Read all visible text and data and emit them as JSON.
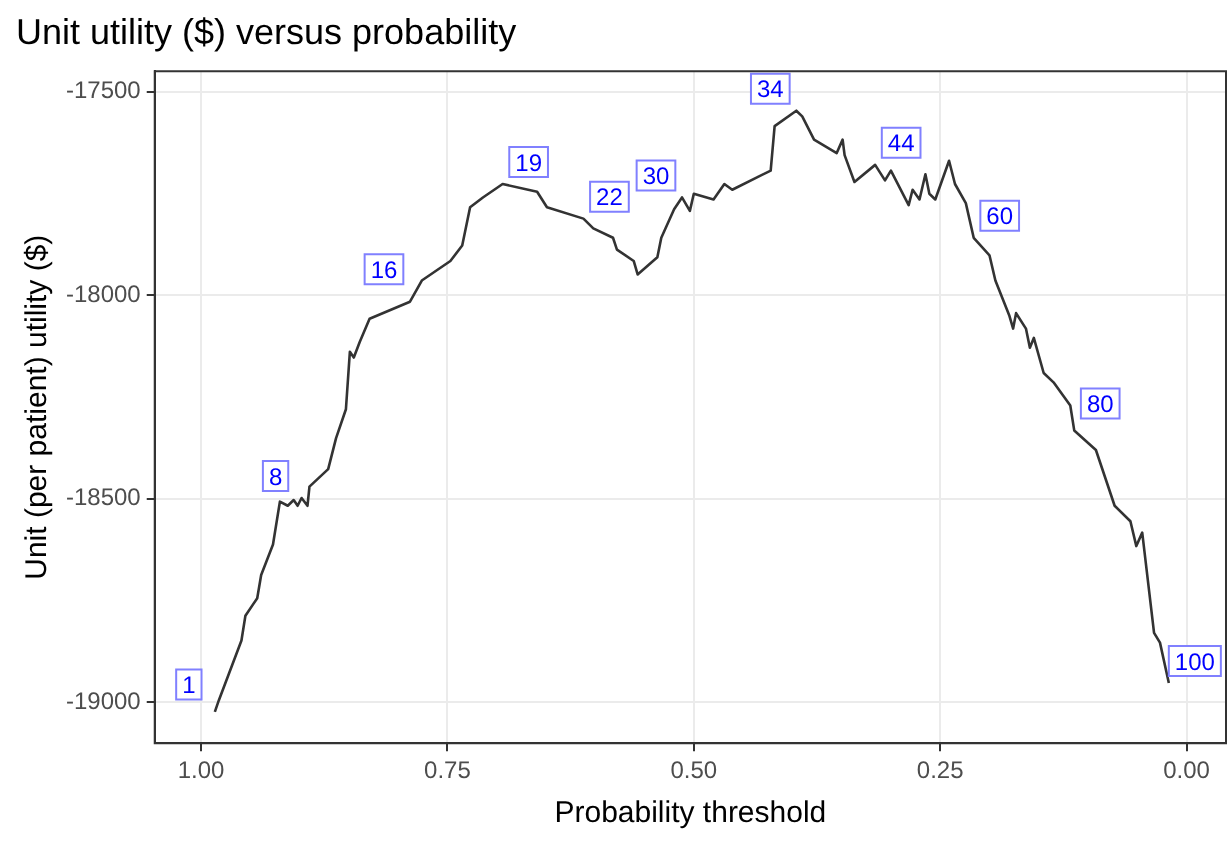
{
  "chart_data": {
    "type": "line",
    "title": "Unit utility ($) versus probability",
    "xlabel": "Probability threshold",
    "ylabel": "Unit (per patient) utility ($)",
    "x": [
      0.986,
      0.982,
      0.959,
      0.955,
      0.943,
      0.939,
      0.927,
      0.92,
      0.912,
      0.906,
      0.902,
      0.898,
      0.892,
      0.89,
      0.871,
      0.863,
      0.853,
      0.849,
      0.845,
      0.839,
      0.829,
      0.788,
      0.776,
      0.747,
      0.735,
      0.727,
      0.714,
      0.694,
      0.659,
      0.649,
      0.612,
      0.602,
      0.582,
      0.578,
      0.561,
      0.557,
      0.537,
      0.533,
      0.52,
      0.512,
      0.504,
      0.5,
      0.48,
      0.469,
      0.461,
      0.422,
      0.418,
      0.396,
      0.39,
      0.378,
      0.355,
      0.349,
      0.347,
      0.337,
      0.316,
      0.306,
      0.3,
      0.282,
      0.278,
      0.271,
      0.265,
      0.261,
      0.255,
      0.241,
      0.235,
      0.224,
      0.216,
      0.2,
      0.194,
      0.18,
      0.176,
      0.173,
      0.163,
      0.159,
      0.155,
      0.145,
      0.135,
      0.118,
      0.114,
      0.092,
      0.073,
      0.057,
      0.051,
      0.045,
      0.033,
      0.027,
      0.018
    ],
    "series": [
      {
        "color": "#333333",
        "values": [
          -19023,
          -18995,
          -18848,
          -18787,
          -18744,
          -18687,
          -18612,
          -18507,
          -18517,
          -18503,
          -18517,
          -18498,
          -18517,
          -18470,
          -18427,
          -18351,
          -18280,
          -18139,
          -18153,
          -18115,
          -18058,
          -18016,
          -17964,
          -17916,
          -17878,
          -17784,
          -17760,
          -17727,
          -17746,
          -17784,
          -17812,
          -17836,
          -17859,
          -17888,
          -17916,
          -17949,
          -17907,
          -17859,
          -17789,
          -17760,
          -17793,
          -17751,
          -17765,
          -17727,
          -17741,
          -17694,
          -17585,
          -17547,
          -17561,
          -17618,
          -17651,
          -17618,
          -17656,
          -17722,
          -17680,
          -17718,
          -17694,
          -17779,
          -17741,
          -17765,
          -17703,
          -17751,
          -17765,
          -17670,
          -17727,
          -17774,
          -17859,
          -17902,
          -17964,
          -18049,
          -18082,
          -18044,
          -18082,
          -18129,
          -18105,
          -18191,
          -18214,
          -18271,
          -18332,
          -18380,
          -18517,
          -18555,
          -18616,
          -18583,
          -18829,
          -18853,
          -18952
        ]
      }
    ],
    "annotations": [
      {
        "text": "1",
        "x": 0.986,
        "y": -19010
      },
      {
        "text": "8",
        "x": 0.898,
        "y": -18498
      },
      {
        "text": "16",
        "x": 0.788,
        "y": -17990
      },
      {
        "text": "19",
        "x": 0.694,
        "y": -17727
      },
      {
        "text": "22",
        "x": 0.612,
        "y": -17812
      },
      {
        "text": "30",
        "x": 0.512,
        "y": -17760
      },
      {
        "text": "34",
        "x": 0.396,
        "y": -17547
      },
      {
        "text": "44",
        "x": 0.316,
        "y": -17680
      },
      {
        "text": "60",
        "x": 0.216,
        "y": -17859
      },
      {
        "text": "80",
        "x": 0.114,
        "y": -18320
      },
      {
        "text": "100",
        "x": 0.018,
        "y": -18952
      }
    ],
    "xlim": [
      1.047,
      -0.04
    ],
    "xticks": [
      {
        "value": 1,
        "label": "1.00"
      },
      {
        "value": 0.75,
        "label": "0.75"
      },
      {
        "value": 0.5,
        "label": "0.50"
      },
      {
        "value": 0.25,
        "label": "0.25"
      },
      {
        "value": 0,
        "label": "0.00"
      }
    ],
    "ylim": [
      -19100,
      -17450
    ],
    "yticks": [
      -19000,
      -18500,
      -18000,
      -17500
    ],
    "grid": true,
    "legend": false,
    "marker": "none",
    "line_style": "solid"
  }
}
